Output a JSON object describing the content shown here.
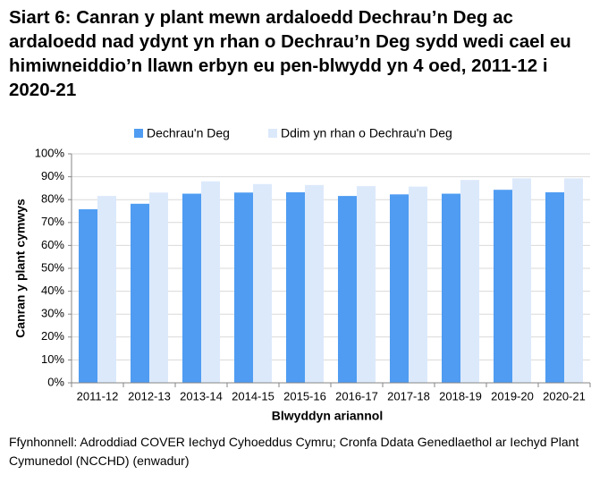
{
  "chart_data": {
    "type": "bar",
    "title": "Siart 6: Canran y plant mewn ardaloedd Dechrau’n Deg ac ardaloedd nad ydynt yn rhan o Dechrau’n Deg sydd wedi cael eu himiwneiddio’n llawn erbyn eu pen-blwydd yn 4 oed, 2011-12 i 2020-21",
    "x_label": "Blwyddyn ariannol",
    "y_label": "Canran y plant cymwys",
    "source": "Ffynhonnell: Adroddiad COVER Iechyd Cyhoeddus Cymru; Cronfa Ddata Genedlaethol ar Iechyd Plant Cymunedol (NCCHD) (enwadur)",
    "categories": [
      "2011-12",
      "2012-13",
      "2013-14",
      "2014-15",
      "2015-16",
      "2016-17",
      "2017-18",
      "2018-19",
      "2019-20",
      "2020-21"
    ],
    "series": [
      {
        "name": "Dechrau'n Deg",
        "color": "#4f9cf2",
        "values": [
          75.8,
          78.2,
          82.6,
          83.1,
          83.2,
          81.6,
          82.3,
          82.6,
          84.3,
          83.2
        ]
      },
      {
        "name": "Ddim yn rhan o Dechrau'n Deg",
        "color": "#dce9fb",
        "values": [
          81.6,
          83.1,
          88.0,
          86.8,
          86.4,
          85.9,
          85.7,
          88.6,
          89.3,
          89.3
        ]
      }
    ],
    "ylim": [
      0,
      100
    ],
    "yticks": [
      {
        "value": 0,
        "label": "0%"
      },
      {
        "value": 10,
        "label": "10%"
      },
      {
        "value": 20,
        "label": "20%"
      },
      {
        "value": 30,
        "label": "30%"
      },
      {
        "value": 40,
        "label": "40%"
      },
      {
        "value": 50,
        "label": "50%"
      },
      {
        "value": 60,
        "label": "60%"
      },
      {
        "value": 70,
        "label": "70%"
      },
      {
        "value": 80,
        "label": "80%"
      },
      {
        "value": 90,
        "label": "90%"
      },
      {
        "value": 100,
        "label": "100%"
      }
    ],
    "grid": true,
    "legend": "top"
  }
}
